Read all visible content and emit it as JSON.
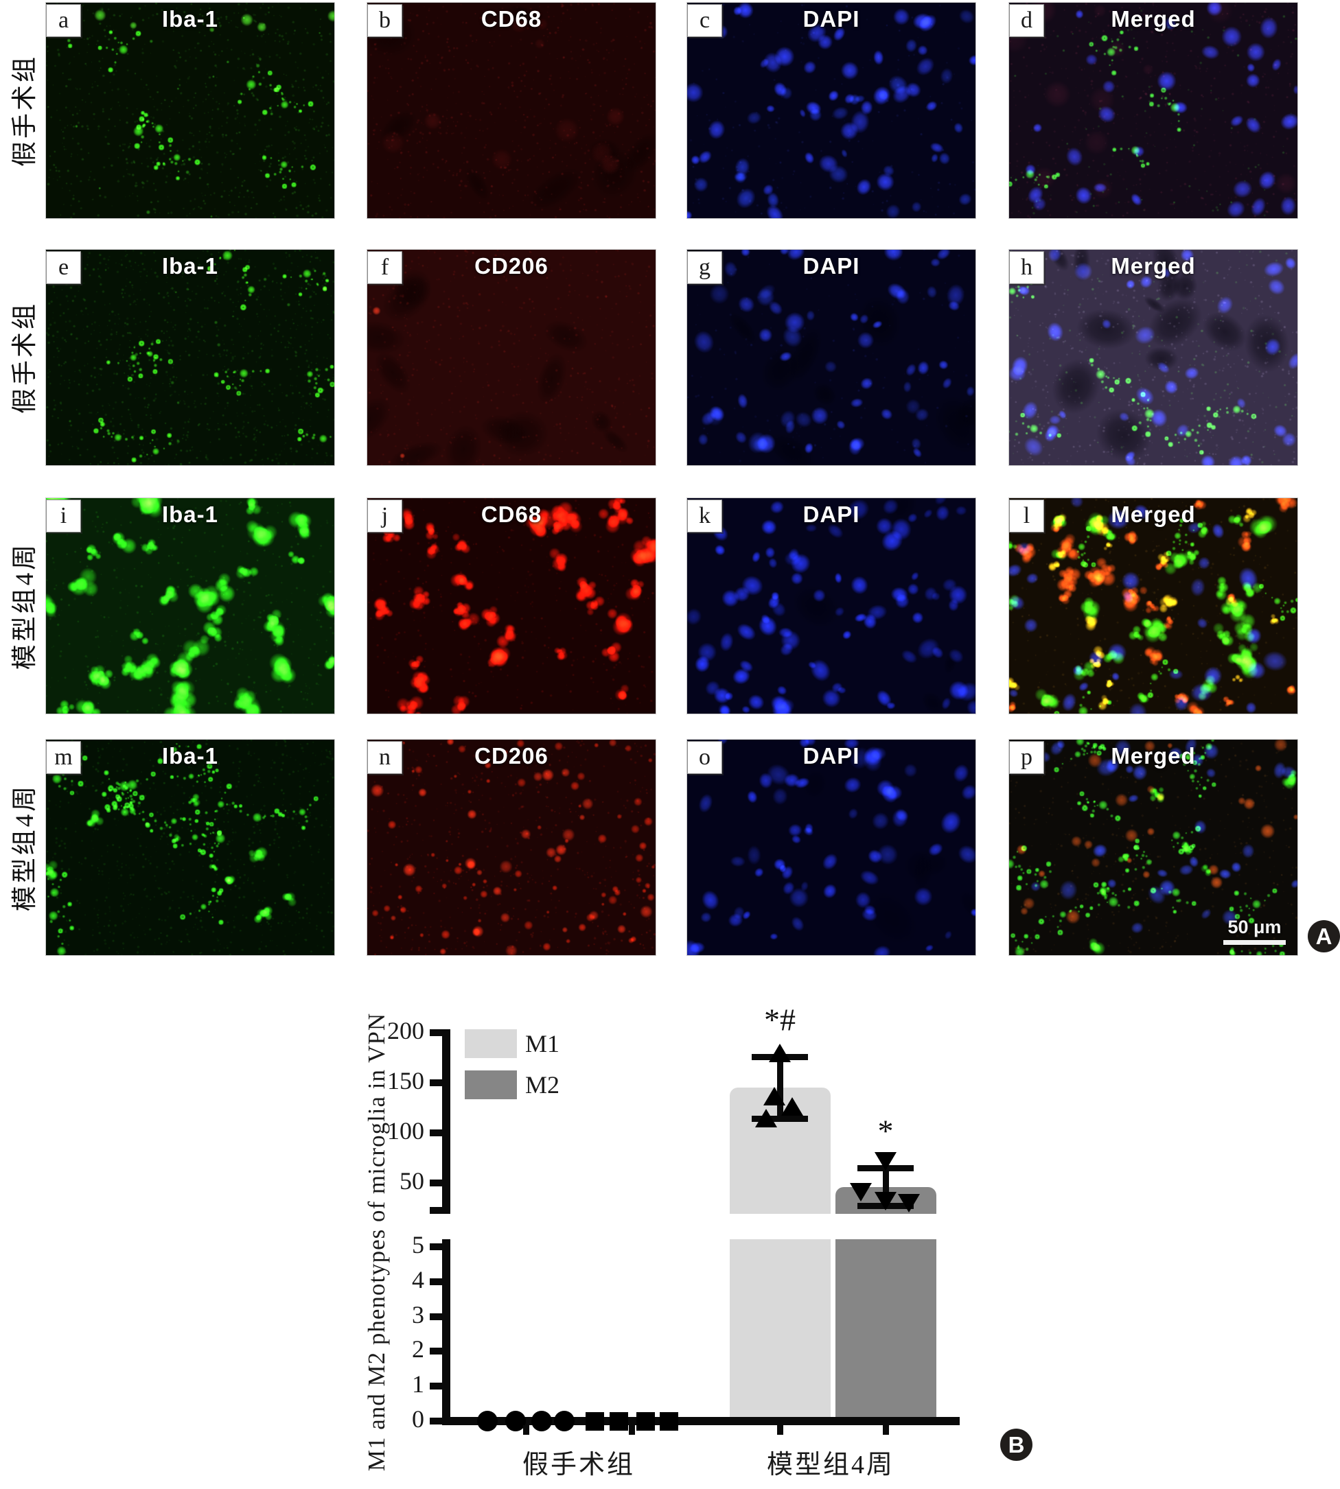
{
  "figure": {
    "badge_a": "A",
    "badge_b": "B",
    "scale_bar_label": "50 μm",
    "rows": [
      {
        "group_label": "假手术组",
        "panels": [
          {
            "letter": "a",
            "title": "Iba-1",
            "bg": "#051002",
            "layers": [
              {
                "kind": "speckle",
                "color": "#2f9e1e",
                "n": 800,
                "alpha": 0.3
              },
              {
                "kind": "blob",
                "color": "#38d81f",
                "n": 14,
                "rmin": 1.5,
                "rmax": 3.5,
                "alpha": 0.8
              },
              {
                "kind": "microglia",
                "color": "#3ae81e",
                "n": 8
              },
              {
                "kind": "blob",
                "color": "#55f02c",
                "n": 6,
                "rmin": 4,
                "rmax": 10,
                "alpha": 0.9,
                "region": "top"
              }
            ]
          },
          {
            "letter": "b",
            "title": "CD68",
            "bg": "#1e0404",
            "layers": [
              {
                "kind": "patch",
                "color": "#0a0101",
                "n": 8,
                "alpha": 0.5
              },
              {
                "kind": "speckle",
                "color": "#6a1212",
                "n": 700,
                "alpha": 0.35
              },
              {
                "kind": "blob",
                "color": "#7a1616",
                "n": 10,
                "rmin": 6,
                "rmax": 20,
                "alpha": 0.25
              }
            ]
          },
          {
            "letter": "c",
            "title": "DAPI",
            "bg": "#04041a",
            "layers": [
              {
                "kind": "nucleus",
                "color": "#2d3cf0",
                "n": 44
              },
              {
                "kind": "nucleus",
                "color": "#1a2a9a",
                "n": 26
              },
              {
                "kind": "speckle",
                "color": "#2a3ab0",
                "n": 200,
                "alpha": 0.2
              }
            ]
          },
          {
            "letter": "d",
            "title": "Merged",
            "bg": "#130a18",
            "layers": [
              {
                "kind": "speckle",
                "color": "#80263a",
                "n": 550,
                "alpha": 0.22
              },
              {
                "kind": "blob",
                "color": "#6a1a2a",
                "n": 12,
                "rmin": 8,
                "rmax": 22,
                "alpha": 0.22
              },
              {
                "kind": "nucleus",
                "color": "#2c3cf2",
                "n": 36
              },
              {
                "kind": "microglia",
                "color": "#38e02a",
                "n": 4
              },
              {
                "kind": "speckle",
                "color": "#3ae02a",
                "n": 90,
                "alpha": 0.3
              }
            ]
          }
        ]
      },
      {
        "group_label": "假手术组",
        "panels": [
          {
            "letter": "e",
            "title": "Iba-1",
            "bg": "#041103",
            "layers": [
              {
                "kind": "speckle",
                "color": "#2a9a18",
                "n": 1000,
                "alpha": 0.28
              },
              {
                "kind": "microglia",
                "color": "#3ce81c",
                "n": 10
              },
              {
                "kind": "blob",
                "color": "#2fae18",
                "n": 16,
                "rmin": 1.5,
                "rmax": 3,
                "alpha": 0.6
              }
            ]
          },
          {
            "letter": "f",
            "title": "CD206",
            "bg": "#2a0707",
            "layers": [
              {
                "kind": "patch",
                "color": "#0d0101",
                "n": 13,
                "alpha": 0.55
              },
              {
                "kind": "speckle",
                "color": "#7a1410",
                "n": 550,
                "alpha": 0.3
              },
              {
                "kind": "puncta",
                "color": "#c03018",
                "n": 2
              }
            ]
          },
          {
            "letter": "g",
            "title": "DAPI",
            "bg": "#04041a",
            "layers": [
              {
                "kind": "patch",
                "color": "#010108",
                "n": 9,
                "alpha": 0.5
              },
              {
                "kind": "nucleus",
                "color": "#2838d8",
                "n": 38
              },
              {
                "kind": "nucleus",
                "color": "#16227a",
                "n": 20
              },
              {
                "kind": "speckle",
                "color": "#2230a0",
                "n": 150,
                "alpha": 0.2
              }
            ]
          },
          {
            "letter": "h",
            "title": "Merged",
            "bg": "#39304a",
            "layers": [
              {
                "kind": "patch",
                "color": "#0a0812",
                "n": 13,
                "alpha": 0.6
              },
              {
                "kind": "speckle",
                "color": "#9a8faa",
                "n": 600,
                "alpha": 0.22
              },
              {
                "kind": "nucleus",
                "color": "#2a3af0",
                "n": 40
              },
              {
                "kind": "speckle",
                "color": "#46d82a",
                "n": 160,
                "alpha": 0.28
              },
              {
                "kind": "microglia",
                "color": "#3ce82a",
                "n": 6
              }
            ]
          }
        ]
      },
      {
        "group_label": "模型组4周",
        "panels": [
          {
            "letter": "i",
            "title": "Iba-1",
            "bg": "#062006",
            "layers": [
              {
                "kind": "speckle",
                "color": "#1e8a10",
                "n": 450,
                "alpha": 0.3
              },
              {
                "kind": "ameboid",
                "color": "#2ce818",
                "n": 38,
                "rmin": 8,
                "rmax": 16
              }
            ]
          },
          {
            "letter": "j",
            "title": "CD68",
            "bg": "#1a0202",
            "layers": [
              {
                "kind": "speckle",
                "color": "#8a0c06",
                "n": 380,
                "alpha": 0.3
              },
              {
                "kind": "ameboid",
                "color": "#f01608",
                "n": 36,
                "rmin": 8,
                "rmax": 15
              }
            ]
          },
          {
            "letter": "k",
            "title": "DAPI",
            "bg": "#04041c",
            "layers": [
              {
                "kind": "patch",
                "color": "#01010c",
                "n": 5,
                "alpha": 0.5
              },
              {
                "kind": "nucleus",
                "color": "#2535f0",
                "n": 58
              },
              {
                "kind": "nucleus",
                "color": "#141f8a",
                "n": 28
              }
            ]
          },
          {
            "letter": "l",
            "title": "Merged",
            "bg": "#140d04",
            "layers": [
              {
                "kind": "speckle",
                "color": "#6a4a12",
                "n": 350,
                "alpha": 0.28
              },
              {
                "kind": "ameboid",
                "color": "#30d816",
                "n": 28,
                "rmin": 7,
                "rmax": 14
              },
              {
                "kind": "ameboid",
                "color": "#e84812",
                "n": 24,
                "rmin": 6,
                "rmax": 13
              },
              {
                "kind": "ameboid",
                "color": "#f0c016",
                "n": 15,
                "rmin": 5,
                "rmax": 11
              },
              {
                "kind": "nucleus",
                "color": "#2a3cf0",
                "n": 32
              },
              {
                "kind": "microglia",
                "color": "#34e01c",
                "n": 5
              }
            ]
          }
        ]
      },
      {
        "group_label": "模型组4周",
        "panels": [
          {
            "letter": "m",
            "title": "Iba-1",
            "bg": "#031003",
            "layers": [
              {
                "kind": "speckle",
                "color": "#1d7a10",
                "n": 800,
                "alpha": 0.28
              },
              {
                "kind": "microglia",
                "color": "#32e41e",
                "n": 18
              },
              {
                "kind": "ameboid",
                "color": "#2ee01a",
                "n": 9,
                "rmin": 5,
                "rmax": 10
              }
            ]
          },
          {
            "letter": "n",
            "title": "CD206",
            "bg": "#1e0404",
            "layers": [
              {
                "kind": "speckle",
                "color": "#9a1408",
                "n": 600,
                "alpha": 0.33
              },
              {
                "kind": "puncta",
                "color": "#b01c08",
                "n": 70
              },
              {
                "kind": "blob",
                "color": "#f03014",
                "n": 30,
                "rmin": 4,
                "rmax": 10,
                "alpha": 0.85
              }
            ]
          },
          {
            "letter": "o",
            "title": "DAPI",
            "bg": "#03031a",
            "layers": [
              {
                "kind": "patch",
                "color": "#010110",
                "n": 6,
                "alpha": 0.5
              },
              {
                "kind": "nucleus",
                "color": "#2636e8",
                "n": 42
              },
              {
                "kind": "nucleus",
                "color": "#18248a",
                "n": 22
              }
            ]
          },
          {
            "letter": "p",
            "title": "Merged",
            "bg": "#0c0a07",
            "scalebar": true,
            "layers": [
              {
                "kind": "speckle",
                "color": "#7a4a16",
                "n": 420,
                "alpha": 0.26
              },
              {
                "kind": "microglia",
                "color": "#30d824",
                "n": 15
              },
              {
                "kind": "blob",
                "color": "#e85414",
                "n": 26,
                "rmin": 4,
                "rmax": 11,
                "alpha": 0.8
              },
              {
                "kind": "nucleus",
                "color": "#2c40e8",
                "n": 34
              },
              {
                "kind": "ameboid",
                "color": "#28c816",
                "n": 9,
                "rmin": 5,
                "rmax": 10
              }
            ]
          }
        ]
      }
    ]
  },
  "chart_data": {
    "type": "bar",
    "title": "",
    "xlabel": "",
    "ylabel": "M1 and M2 phenotypes of microglia in VPN",
    "categories": [
      "假手术组",
      "模型组4周"
    ],
    "series": [
      {
        "name": "M1",
        "color": "#d9d9d9",
        "values": [
          0,
          145
        ],
        "sd": [
          0,
          31
        ],
        "marker": [
          "circle",
          "triangle-up"
        ],
        "scatter_values": [
          [
            0,
            0,
            0,
            0
          ],
          [
            180,
            137,
            127,
            115
          ]
        ],
        "scatter_offsets": [
          [
            -56,
            -15,
            23,
            56
          ],
          [
            0,
            -8,
            18,
            -20
          ]
        ]
      },
      {
        "name": "M2",
        "color": "#868686",
        "values": [
          0,
          46
        ],
        "sd": [
          0,
          19
        ],
        "marker": [
          "square",
          "triangle-down"
        ],
        "scatter_values": [
          [
            0,
            0,
            0,
            0
          ],
          [
            72,
            41,
            32,
            30
          ]
        ],
        "scatter_offsets": [
          [
            -54,
            -19,
            20,
            54
          ],
          [
            0,
            -36,
            0,
            34
          ]
        ]
      }
    ],
    "annotations": [
      {
        "text": "*#",
        "category_index": 1,
        "series_index": 0
      },
      {
        "text": "*",
        "category_index": 1,
        "series_index": 1
      }
    ],
    "upper_axis": {
      "ticks": [
        200,
        150,
        100,
        50
      ],
      "range": [
        25,
        200
      ]
    },
    "lower_axis": {
      "ticks": [
        5,
        4,
        3,
        2,
        1,
        0
      ],
      "range": [
        0,
        5
      ]
    },
    "legend": [
      "M1",
      "M2"
    ],
    "legend_position": "top-left-inside",
    "grid": false
  }
}
